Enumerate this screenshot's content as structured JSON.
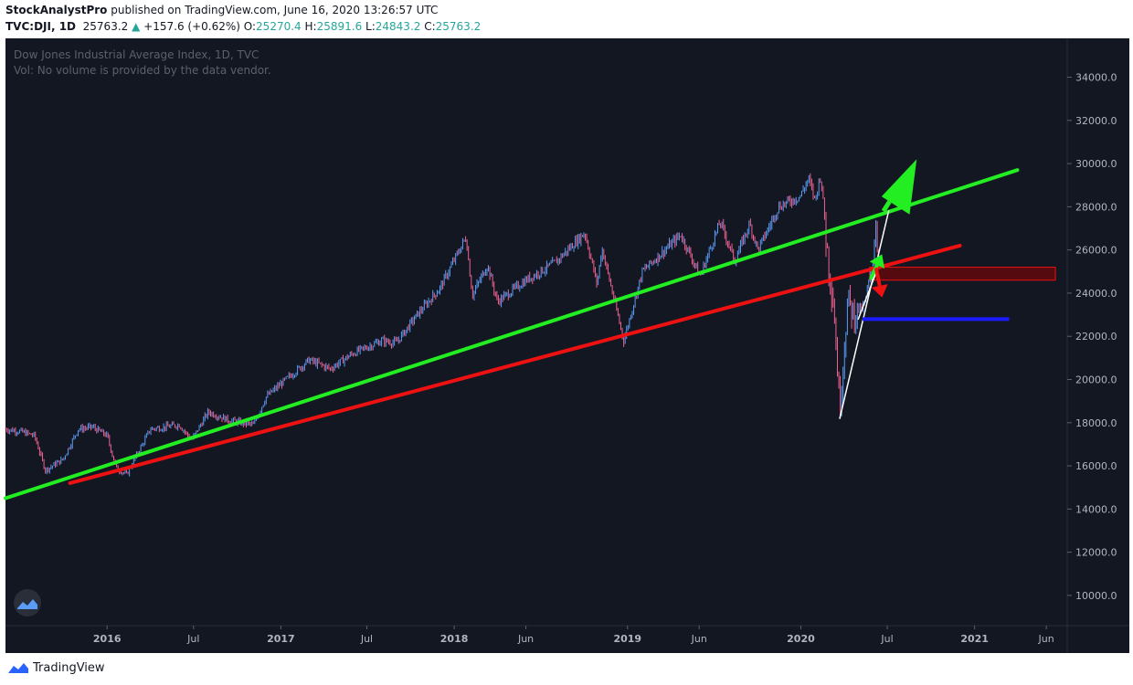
{
  "header": {
    "author": "StockAnalystPro",
    "published": "published on TradingView.com, June 16, 2020 13:26:57 UTC",
    "symbol": "TVC:DJI, 1D",
    "last": "25763.2",
    "change": "+157.6 (+0.62%)",
    "o_label": "O:",
    "o_value": "25270.4",
    "h_label": "H:",
    "h_value": "25891.6",
    "l_label": "L:",
    "l_value": "24843.2",
    "c_label": "C:",
    "c_value": "25763.2"
  },
  "legend": {
    "title": "Dow Jones Industrial Average Index, 1D, TVC",
    "volume_note": "Vol: No volume is provided by the data vendor."
  },
  "footer": {
    "brand": "TradingView"
  },
  "colors": {
    "background": "#131722",
    "bull": "#5b9cf6",
    "bear": "#f06292",
    "trend_green": "#22ee22",
    "trend_red": "#ee1111",
    "support_blue": "#1a1aff",
    "zone": "#8b0000"
  },
  "chart_data": {
    "type": "candlestick",
    "y_ticks": [
      "34000.0",
      "32000.0",
      "30000.0",
      "28000.0",
      "26000.0",
      "24000.0",
      "22000.0",
      "20000.0",
      "18000.0",
      "16000.0",
      "14000.0",
      "12000.0",
      "10000.0"
    ],
    "x_ticks": [
      {
        "label": "2016",
        "date": "2016-01-01",
        "bold": true
      },
      {
        "label": "Jul",
        "date": "2016-07-01",
        "bold": false
      },
      {
        "label": "2017",
        "date": "2017-01-01",
        "bold": true
      },
      {
        "label": "Jul",
        "date": "2017-07-01",
        "bold": false
      },
      {
        "label": "2018",
        "date": "2018-01-01",
        "bold": true
      },
      {
        "label": "Jun",
        "date": "2018-06-01",
        "bold": false
      },
      {
        "label": "2019",
        "date": "2019-01-01",
        "bold": true
      },
      {
        "label": "Jun",
        "date": "2019-06-01",
        "bold": false
      },
      {
        "label": "2020",
        "date": "2020-01-01",
        "bold": true
      },
      {
        "label": "Jul",
        "date": "2020-07-01",
        "bold": false
      },
      {
        "label": "2021",
        "date": "2021-01-01",
        "bold": true
      },
      {
        "label": "Jun",
        "date": "2021-06-01",
        "bold": false
      }
    ],
    "x_range": [
      "2015-06-01",
      "2021-07-15"
    ],
    "y_range": [
      8600,
      35800
    ],
    "price_path": [
      [
        "2015-06-01",
        17700
      ],
      [
        "2015-07-01",
        17600
      ],
      [
        "2015-08-01",
        17400
      ],
      [
        "2015-08-24",
        15800
      ],
      [
        "2015-09-30",
        16300
      ],
      [
        "2015-11-01",
        17700
      ],
      [
        "2015-12-01",
        17800
      ],
      [
        "2016-01-01",
        17400
      ],
      [
        "2016-01-20",
        15900
      ],
      [
        "2016-02-11",
        15600
      ],
      [
        "2016-04-01",
        17700
      ],
      [
        "2016-06-01",
        17900
      ],
      [
        "2016-06-27",
        17200
      ],
      [
        "2016-08-01",
        18500
      ],
      [
        "2016-09-15",
        18100
      ],
      [
        "2016-11-04",
        17900
      ],
      [
        "2016-12-01",
        19200
      ],
      [
        "2017-01-01",
        19800
      ],
      [
        "2017-03-01",
        20900
      ],
      [
        "2017-04-15",
        20500
      ],
      [
        "2017-06-01",
        21200
      ],
      [
        "2017-08-01",
        21800
      ],
      [
        "2017-09-01",
        21700
      ],
      [
        "2017-10-15",
        23000
      ],
      [
        "2017-12-01",
        24200
      ],
      [
        "2018-01-26",
        26600
      ],
      [
        "2018-02-08",
        23900
      ],
      [
        "2018-03-12",
        25300
      ],
      [
        "2018-04-02",
        23600
      ],
      [
        "2018-06-01",
        24600
      ],
      [
        "2018-08-01",
        25400
      ],
      [
        "2018-10-03",
        26800
      ],
      [
        "2018-10-29",
        24400
      ],
      [
        "2018-11-08",
        26100
      ],
      [
        "2018-12-24",
        21800
      ],
      [
        "2019-02-01",
        25000
      ],
      [
        "2019-04-23",
        26700
      ],
      [
        "2019-06-03",
        24800
      ],
      [
        "2019-07-15",
        27300
      ],
      [
        "2019-08-15",
        25500
      ],
      [
        "2019-09-15",
        27200
      ],
      [
        "2019-10-03",
        26000
      ],
      [
        "2019-11-15",
        28000
      ],
      [
        "2019-12-31",
        28500
      ],
      [
        "2020-01-17",
        29300
      ],
      [
        "2020-01-31",
        28300
      ],
      [
        "2020-02-12",
        29500
      ],
      [
        "2020-02-28",
        25400
      ],
      [
        "2020-03-10",
        23600
      ],
      [
        "2020-03-23",
        18600
      ],
      [
        "2020-04-09",
        23700
      ],
      [
        "2020-04-21",
        23000
      ],
      [
        "2020-05-13",
        23400
      ],
      [
        "2020-06-01",
        25500
      ],
      [
        "2020-06-08",
        27600
      ],
      [
        "2020-06-11",
        25100
      ],
      [
        "2020-06-16",
        25763
      ]
    ],
    "trend_lines": [
      {
        "color": "#22ee22",
        "from": [
          "2015-06-01",
          14500
        ],
        "to": [
          "2021-04-01",
          29700
        ]
      },
      {
        "color": "#ee1111",
        "from": [
          "2015-10-15",
          15200
        ],
        "to": [
          "2020-12-01",
          26200
        ]
      },
      {
        "color": "#ffffff",
        "from": [
          "2020-03-23",
          18200
        ],
        "to": [
          "2020-07-04",
          27800
        ]
      },
      {
        "color": "#ffffff",
        "from": [
          "2020-05-01",
          22800
        ],
        "to": [
          "2020-06-10",
          25100
        ]
      }
    ],
    "zones": [
      {
        "color": "#8b0000",
        "from": [
          "2020-05-25",
          25200
        ],
        "to": [
          "2021-06-20",
          24600
        ]
      }
    ],
    "support_lines": [
      {
        "color": "#1a1aff",
        "from": [
          "2020-05-10",
          22800
        ],
        "to": [
          "2021-03-15",
          22800
        ]
      }
    ],
    "arrows": [
      {
        "color": "#22ee22",
        "from": [
          "2020-06-23",
          27800
        ],
        "to": [
          "2020-09-01",
          30200
        ],
        "size": "large"
      },
      {
        "color": "#22ee22",
        "from": [
          "2020-05-28",
          24700
        ],
        "to": [
          "2020-06-20",
          25800
        ],
        "size": "small"
      },
      {
        "color": "#ee1111",
        "from": [
          "2020-06-08",
          25100
        ],
        "to": [
          "2020-06-20",
          23800
        ],
        "size": "small"
      }
    ]
  }
}
